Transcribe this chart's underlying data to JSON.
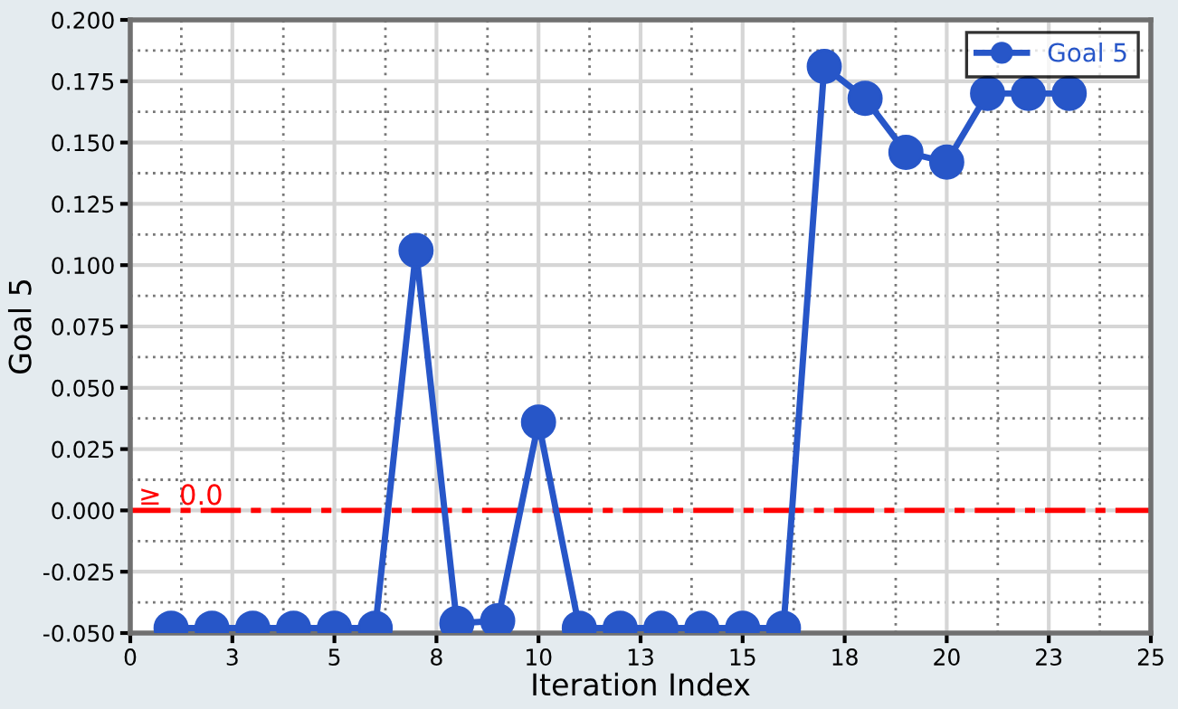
{
  "chart_data": {
    "type": "line",
    "xlabel": "Iteration Index",
    "ylabel": "Goal 5",
    "x": [
      1,
      2,
      3,
      4,
      5,
      6,
      7,
      8,
      9,
      10,
      11,
      12,
      13,
      14,
      15,
      16,
      17,
      18,
      19,
      20,
      21,
      22,
      23
    ],
    "series": [
      {
        "name": "Goal 5",
        "color": "#2756c8",
        "values": [
          -0.048,
          -0.048,
          -0.048,
          -0.048,
          -0.048,
          -0.048,
          0.106,
          -0.046,
          -0.045,
          0.036,
          -0.048,
          -0.048,
          -0.048,
          -0.048,
          -0.048,
          -0.048,
          0.181,
          0.168,
          0.146,
          0.142,
          0.17,
          0.17,
          0.17
        ]
      }
    ],
    "xlim": [
      0,
      25
    ],
    "xticks": [
      0,
      {
        "value": 2.5,
        "label": "3"
      },
      5,
      {
        "value": 7.5,
        "label": "8"
      },
      10,
      {
        "value": 12.5,
        "label": "13"
      },
      15,
      {
        "value": 17.5,
        "label": "18"
      },
      20,
      {
        "value": 22.5,
        "label": "23"
      },
      25
    ],
    "ylim": [
      -0.05,
      0.2
    ],
    "yticks": [
      {
        "value": -0.05,
        "label": "-0.050"
      },
      {
        "value": -0.025,
        "label": "-0.025"
      },
      {
        "value": 0,
        "label": "0.000"
      },
      {
        "value": 0.025,
        "label": "0.025"
      },
      {
        "value": 0.05,
        "label": "0.050"
      },
      {
        "value": 0.075,
        "label": "0.075"
      },
      {
        "value": 0.1,
        "label": "0.100"
      },
      {
        "value": 0.125,
        "label": "0.125"
      },
      {
        "value": 0.15,
        "label": "0.150"
      },
      {
        "value": 0.175,
        "label": "0.175"
      },
      {
        "value": 0.2,
        "label": "0.200"
      }
    ],
    "ref_lines": [
      {
        "axis": "y",
        "value": 0,
        "label": "≥  0.0",
        "color": "#ff0000",
        "line_style": "dashed"
      }
    ],
    "grid": true,
    "legend": "top right",
    "marker": "circle",
    "line_style": "solid"
  }
}
